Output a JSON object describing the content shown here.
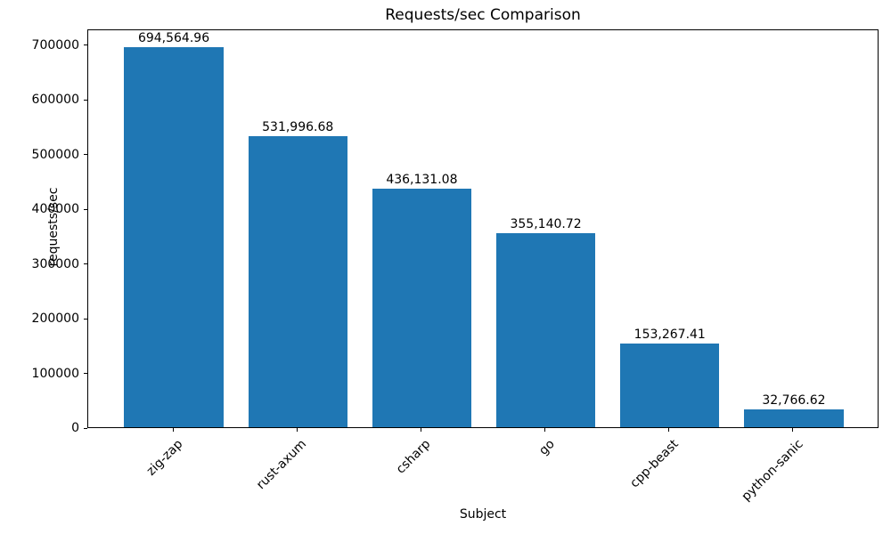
{
  "chart_data": {
    "type": "bar",
    "title": "Requests/sec Comparison",
    "xlabel": "Subject",
    "ylabel": "requests/sec",
    "categories": [
      "zig-zap",
      "rust-axum",
      "csharp",
      "go",
      "cpp-beast",
      "python-sanic"
    ],
    "values": [
      694564.96,
      531996.68,
      436131.08,
      355140.72,
      153267.41,
      32766.62
    ],
    "value_labels": [
      "694,564.96",
      "531,996.68",
      "436,131.08",
      "355,140.72",
      "153,267.41",
      "32,766.62"
    ],
    "series": [
      {
        "name": "requests/sec",
        "values": [
          694564.96,
          531996.68,
          436131.08,
          355140.72,
          153267.41,
          32766.62
        ]
      }
    ],
    "ylim": [
      0,
      729293
    ],
    "yticks": [
      0,
      100000,
      200000,
      300000,
      400000,
      500000,
      600000,
      700000
    ],
    "ytick_labels": [
      "0",
      "100000",
      "200000",
      "300000",
      "400000",
      "500000",
      "600000",
      "700000"
    ],
    "x_tick_rotation": 45,
    "grid": false,
    "legend": null,
    "bar_color": "#1f77b4",
    "text_color": "#000000",
    "background_color": "#ffffff"
  }
}
